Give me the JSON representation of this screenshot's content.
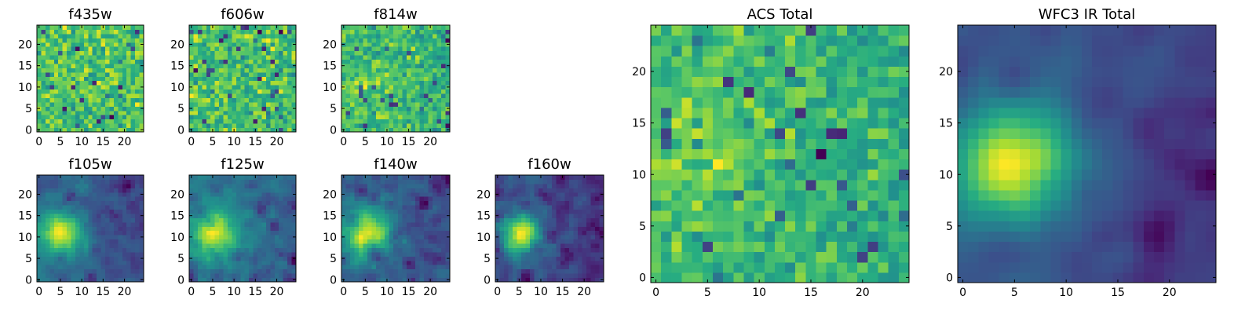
{
  "chart_data": [
    {
      "type": "heatmap",
      "title": "f435w",
      "xlabel": "",
      "ylabel": "",
      "grid_size": 25,
      "xlim": [
        -0.5,
        24.5
      ],
      "ylim": [
        -0.5,
        24.5
      ],
      "x_ticks": [
        0,
        5,
        10,
        15,
        20
      ],
      "y_ticks": [
        0,
        5,
        10,
        15,
        20
      ],
      "colormap": "viridis",
      "origin": "lower",
      "description_of_values": "noise-dominated, mostly mid-to-high values with scattered dark pixels",
      "values_seed": 11,
      "peak": null,
      "noise_level": 0.45,
      "smoothness": 0
    },
    {
      "type": "heatmap",
      "title": "f606w",
      "xlabel": "",
      "ylabel": "",
      "grid_size": 25,
      "xlim": [
        -0.5,
        24.5
      ],
      "ylim": [
        -0.5,
        24.5
      ],
      "x_ticks": [
        0,
        5,
        10,
        15,
        20
      ],
      "y_ticks": [
        0,
        5,
        10,
        15,
        20
      ],
      "colormap": "viridis",
      "origin": "lower",
      "values_seed": 23,
      "peak": null,
      "noise_level": 0.5,
      "smoothness": 0
    },
    {
      "type": "heatmap",
      "title": "f814w",
      "xlabel": "",
      "ylabel": "",
      "grid_size": 25,
      "xlim": [
        -0.5,
        24.5
      ],
      "ylim": [
        -0.5,
        24.5
      ],
      "x_ticks": [
        0,
        5,
        10,
        15,
        20
      ],
      "y_ticks": [
        0,
        5,
        10,
        15,
        20
      ],
      "colormap": "viridis",
      "origin": "lower",
      "values_seed": 37,
      "peak": {
        "x": 5,
        "y": 11,
        "amplitude": 0.15,
        "sigma": 3
      },
      "noise_level": 0.5,
      "smoothness": 0
    },
    {
      "type": "heatmap",
      "title": "f105w",
      "xlabel": "",
      "ylabel": "",
      "grid_size": 25,
      "xlim": [
        -0.5,
        24.5
      ],
      "ylim": [
        -0.5,
        24.5
      ],
      "x_ticks": [
        0,
        5,
        10,
        15,
        20
      ],
      "y_ticks": [
        0,
        5,
        10,
        15,
        20
      ],
      "colormap": "viridis",
      "origin": "lower",
      "values_seed": 41,
      "peak": {
        "x": 5,
        "y": 11,
        "amplitude": 0.55,
        "sigma": 3.5
      },
      "noise_level": 0.3,
      "smoothness": 1
    },
    {
      "type": "heatmap",
      "title": "f125w",
      "xlabel": "",
      "ylabel": "",
      "grid_size": 25,
      "xlim": [
        -0.5,
        24.5
      ],
      "ylim": [
        -0.5,
        24.5
      ],
      "x_ticks": [
        0,
        5,
        10,
        15,
        20
      ],
      "y_ticks": [
        0,
        5,
        10,
        15,
        20
      ],
      "colormap": "viridis",
      "origin": "lower",
      "values_seed": 53,
      "peak": {
        "x": 5,
        "y": 11,
        "amplitude": 0.5,
        "sigma": 4
      },
      "noise_level": 0.35,
      "smoothness": 1
    },
    {
      "type": "heatmap",
      "title": "f140w",
      "xlabel": "",
      "ylabel": "",
      "grid_size": 25,
      "xlim": [
        -0.5,
        24.5
      ],
      "ylim": [
        -0.5,
        24.5
      ],
      "x_ticks": [
        0,
        5,
        10,
        15,
        20
      ],
      "y_ticks": [
        0,
        5,
        10,
        15,
        20
      ],
      "colormap": "viridis",
      "origin": "lower",
      "values_seed": 67,
      "peak": {
        "x": 5,
        "y": 11,
        "amplitude": 0.5,
        "sigma": 4
      },
      "noise_level": 0.35,
      "smoothness": 1
    },
    {
      "type": "heatmap",
      "title": "f160w",
      "xlabel": "",
      "ylabel": "",
      "grid_size": 25,
      "xlim": [
        -0.5,
        24.5
      ],
      "ylim": [
        -0.5,
        24.5
      ],
      "x_ticks": [
        0,
        5,
        10,
        15,
        20
      ],
      "y_ticks": [
        0,
        5,
        10,
        15,
        20
      ],
      "colormap": "viridis",
      "origin": "lower",
      "values_seed": 79,
      "peak": {
        "x": 5,
        "y": 11,
        "amplitude": 0.6,
        "sigma": 3.2
      },
      "noise_level": 0.3,
      "smoothness": 1
    },
    {
      "type": "heatmap",
      "title": "ACS Total",
      "xlabel": "",
      "ylabel": "",
      "grid_size": 25,
      "xlim": [
        -0.5,
        24.5
      ],
      "ylim": [
        -0.5,
        24.5
      ],
      "x_ticks": [
        0,
        5,
        10,
        15,
        20
      ],
      "y_ticks": [
        0,
        5,
        10,
        15,
        20
      ],
      "colormap": "viridis",
      "origin": "lower",
      "values_seed": 97,
      "peak": {
        "x": 5,
        "y": 12,
        "amplitude": 0.15,
        "sigma": 4
      },
      "noise_level": 0.35,
      "smoothness": 0
    },
    {
      "type": "heatmap",
      "title": "WFC3 IR Total",
      "xlabel": "",
      "ylabel": "",
      "grid_size": 25,
      "xlim": [
        -0.5,
        24.5
      ],
      "ylim": [
        -0.5,
        24.5
      ],
      "x_ticks": [
        0,
        5,
        10,
        15,
        20
      ],
      "y_ticks": [
        0,
        5,
        10,
        15,
        20
      ],
      "colormap": "viridis",
      "origin": "lower",
      "values_seed": 113,
      "peak": {
        "x": 5,
        "y": 11,
        "amplitude": 0.6,
        "sigma": 3.8
      },
      "noise_level": 0.22,
      "smoothness": 2
    }
  ]
}
